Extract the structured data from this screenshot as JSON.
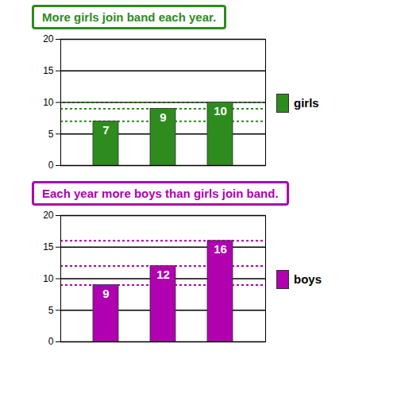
{
  "chart_data": [
    {
      "type": "bar",
      "title": "More girls join band each year.",
      "categories": [
        null,
        null,
        null
      ],
      "series": [
        {
          "name": "girls",
          "color": "#2e8b1e",
          "values": [
            7,
            9,
            10
          ]
        }
      ],
      "ylim": [
        0,
        20
      ],
      "yticks": [
        0,
        5,
        10,
        15,
        20
      ],
      "grid": true,
      "data_labels": true,
      "legend": "right",
      "tick_labels": "y"
    },
    {
      "type": "bar",
      "title": "Each year more boys than girls join band.",
      "categories": [
        null,
        null,
        null
      ],
      "series": [
        {
          "name": "boys",
          "color": "#b000b0",
          "values": [
            9,
            12,
            16
          ]
        }
      ],
      "ylim": [
        0,
        20
      ],
      "yticks": [
        0,
        5,
        10,
        15,
        20
      ],
      "grid": true,
      "data_labels": true,
      "legend": "right",
      "tick_labels": "y"
    }
  ]
}
